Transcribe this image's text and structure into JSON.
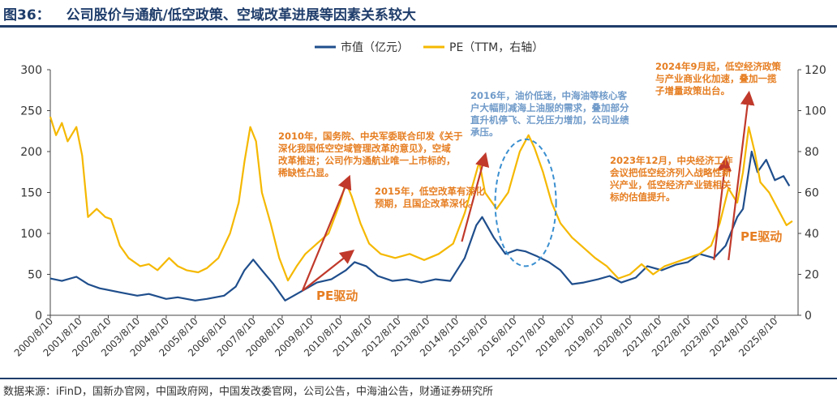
{
  "header": {
    "figure_no": "图36：",
    "title": "公司股价与通航/低空政策、空域改革进展等因素关系较大"
  },
  "footer": {
    "source": "数据来源：iFinD，国新办官网，中国政府网，中国发改委官网，公司公告，中海油公告，财通证券研究所"
  },
  "colors": {
    "market_cap": "#1f4e8c",
    "pe": "#f5b800",
    "annotation_orange": "#e67e22",
    "annotation_blue": "#6f9ac9",
    "arrow_red": "#c0392b",
    "axis": "#444444"
  },
  "chart_data": {
    "type": "line",
    "legend": [
      "市值（亿元）",
      "PE（TTM，右轴）"
    ],
    "legend_position": "top-center",
    "categories": [
      "2000/8/10",
      "2001/8/10",
      "2002/8/10",
      "2003/8/10",
      "2004/8/10",
      "2005/8/10",
      "2006/8/10",
      "2007/8/10",
      "2008/8/10",
      "2009/8/10",
      "2010/8/10",
      "2011/8/10",
      "2012/8/10",
      "2013/8/10",
      "2014/8/10",
      "2015/8/10",
      "2016/8/10",
      "2017/8/10",
      "2018/8/10",
      "2019/8/10",
      "2020/8/10",
      "2021/8/10",
      "2022/8/10",
      "2023/8/10",
      "2024/8/10",
      "2025/8/10"
    ],
    "x_range": [
      2000.6,
      2026.4
    ],
    "left_axis": {
      "label": "市值（亿元）",
      "ylim": [
        0,
        300
      ],
      "ticks": [
        0,
        50,
        100,
        150,
        200,
        250,
        300
      ]
    },
    "right_axis": {
      "label": "PE（TTM，右轴）",
      "ylim": [
        0,
        120
      ],
      "ticks": [
        0,
        20,
        40,
        60,
        80,
        100,
        120
      ]
    },
    "series": [
      {
        "name": "市值（亿元）",
        "axis": "left",
        "points": [
          [
            2000.6,
            45
          ],
          [
            2001.0,
            42
          ],
          [
            2001.5,
            47
          ],
          [
            2001.9,
            38
          ],
          [
            2002.3,
            33
          ],
          [
            2003.0,
            28
          ],
          [
            2003.6,
            24
          ],
          [
            2004.0,
            26
          ],
          [
            2004.6,
            20
          ],
          [
            2005.0,
            22
          ],
          [
            2005.6,
            18
          ],
          [
            2006.0,
            20
          ],
          [
            2006.6,
            24
          ],
          [
            2007.0,
            35
          ],
          [
            2007.3,
            55
          ],
          [
            2007.6,
            68
          ],
          [
            2007.9,
            55
          ],
          [
            2008.3,
            38
          ],
          [
            2008.7,
            18
          ],
          [
            2009.0,
            24
          ],
          [
            2009.4,
            32
          ],
          [
            2009.8,
            40
          ],
          [
            2010.3,
            44
          ],
          [
            2010.8,
            55
          ],
          [
            2011.1,
            65
          ],
          [
            2011.5,
            60
          ],
          [
            2011.9,
            48
          ],
          [
            2012.4,
            42
          ],
          [
            2012.9,
            44
          ],
          [
            2013.4,
            40
          ],
          [
            2013.9,
            44
          ],
          [
            2014.4,
            42
          ],
          [
            2014.9,
            70
          ],
          [
            2015.3,
            110
          ],
          [
            2015.5,
            120
          ],
          [
            2015.9,
            95
          ],
          [
            2016.3,
            75
          ],
          [
            2016.7,
            80
          ],
          [
            2017.0,
            78
          ],
          [
            2017.4,
            72
          ],
          [
            2017.8,
            65
          ],
          [
            2018.2,
            55
          ],
          [
            2018.6,
            38
          ],
          [
            2019.0,
            40
          ],
          [
            2019.5,
            44
          ],
          [
            2019.9,
            48
          ],
          [
            2020.3,
            40
          ],
          [
            2020.8,
            46
          ],
          [
            2021.2,
            60
          ],
          [
            2021.7,
            55
          ],
          [
            2022.2,
            62
          ],
          [
            2022.6,
            65
          ],
          [
            2023.0,
            75
          ],
          [
            2023.5,
            70
          ],
          [
            2023.9,
            85
          ],
          [
            2024.3,
            120
          ],
          [
            2024.5,
            130
          ],
          [
            2024.8,
            200
          ],
          [
            2025.0,
            175
          ],
          [
            2025.3,
            190
          ],
          [
            2025.6,
            165
          ],
          [
            2025.9,
            170
          ],
          [
            2026.1,
            158
          ]
        ]
      },
      {
        "name": "PE（TTM，右轴）",
        "axis": "right",
        "points": [
          [
            2000.6,
            97
          ],
          [
            2000.8,
            88
          ],
          [
            2001.0,
            94
          ],
          [
            2001.2,
            85
          ],
          [
            2001.5,
            92
          ],
          [
            2001.7,
            78
          ],
          [
            2001.9,
            48
          ],
          [
            2002.2,
            52
          ],
          [
            2002.5,
            48
          ],
          [
            2002.7,
            47
          ],
          [
            2003.0,
            34
          ],
          [
            2003.3,
            28
          ],
          [
            2003.7,
            24
          ],
          [
            2004.0,
            25
          ],
          [
            2004.3,
            22
          ],
          [
            2004.7,
            28
          ],
          [
            2005.0,
            24
          ],
          [
            2005.3,
            22
          ],
          [
            2005.7,
            21
          ],
          [
            2006.0,
            23
          ],
          [
            2006.4,
            28
          ],
          [
            2006.8,
            40
          ],
          [
            2007.1,
            55
          ],
          [
            2007.3,
            75
          ],
          [
            2007.5,
            92
          ],
          [
            2007.7,
            85
          ],
          [
            2007.9,
            60
          ],
          [
            2008.2,
            45
          ],
          [
            2008.5,
            28
          ],
          [
            2008.8,
            17
          ],
          [
            2009.1,
            24
          ],
          [
            2009.4,
            30
          ],
          [
            2009.8,
            35
          ],
          [
            2010.2,
            40
          ],
          [
            2010.6,
            55
          ],
          [
            2010.8,
            65
          ],
          [
            2011.0,
            58
          ],
          [
            2011.3,
            45
          ],
          [
            2011.6,
            35
          ],
          [
            2012.0,
            30
          ],
          [
            2012.5,
            28
          ],
          [
            2013.0,
            30
          ],
          [
            2013.5,
            27
          ],
          [
            2014.0,
            30
          ],
          [
            2014.5,
            35
          ],
          [
            2014.9,
            50
          ],
          [
            2015.2,
            65
          ],
          [
            2015.4,
            75
          ],
          [
            2015.6,
            60
          ],
          [
            2016.0,
            52
          ],
          [
            2016.4,
            60
          ],
          [
            2016.8,
            80
          ],
          [
            2017.1,
            88
          ],
          [
            2017.3,
            82
          ],
          [
            2017.6,
            70
          ],
          [
            2017.9,
            55
          ],
          [
            2018.2,
            45
          ],
          [
            2018.6,
            38
          ],
          [
            2019.0,
            33
          ],
          [
            2019.4,
            28
          ],
          [
            2019.8,
            24
          ],
          [
            2020.2,
            18
          ],
          [
            2020.6,
            20
          ],
          [
            2021.0,
            25
          ],
          [
            2021.4,
            20
          ],
          [
            2021.8,
            24
          ],
          [
            2022.2,
            26
          ],
          [
            2022.6,
            28
          ],
          [
            2023.0,
            30
          ],
          [
            2023.4,
            34
          ],
          [
            2023.7,
            45
          ],
          [
            2024.0,
            62
          ],
          [
            2024.3,
            55
          ],
          [
            2024.5,
            70
          ],
          [
            2024.7,
            92
          ],
          [
            2024.9,
            80
          ],
          [
            2025.1,
            65
          ],
          [
            2025.4,
            60
          ],
          [
            2025.7,
            52
          ],
          [
            2026.0,
            44
          ],
          [
            2026.2,
            46
          ]
        ]
      }
    ],
    "annotations": [
      {
        "id": "a2010",
        "color": "orange",
        "text": [
          "2010年，国务院、中央军委联合印发《关于",
          "深化我国低空空域管理改革的意见》，空域",
          "改革推进；公司作为通航业唯一上市标的，",
          "稀缺性凸显。"
        ]
      },
      {
        "id": "a2015",
        "color": "orange",
        "text": [
          "2015年，低空改革有深化",
          "预期，且国企改革深化。"
        ]
      },
      {
        "id": "a2016",
        "color": "blue",
        "text": [
          "2016年，油价低迷，中海油等核心客",
          "户大幅削减海上油服的需求，叠加部分",
          "直升机停飞、汇兑压力增加，公司业绩",
          "承压。"
        ]
      },
      {
        "id": "a2023",
        "color": "orange",
        "text": [
          "2023年12月，中央经济工作",
          "会议把低空经济列入战略性新",
          "兴产业，低空经济产业链相关",
          "标的估值提升。"
        ]
      },
      {
        "id": "a2024",
        "color": "orange",
        "text": [
          "2024年9月起，低空经济政策",
          "与产业商业化加速，叠加一揽",
          "子增量政策出台。"
        ]
      }
    ],
    "callouts": [
      "PE驱动",
      "PE驱动"
    ],
    "arrows": [
      {
        "from": [
          2009.3,
          12
        ],
        "to": [
          2010.9,
          67
        ],
        "axis": "right"
      },
      {
        "from": [
          2009.3,
          12
        ],
        "to": [
          2011.0,
          31
        ],
        "axis": "right"
      },
      {
        "from": [
          2014.8,
          36
        ],
        "to": [
          2015.6,
          78
        ],
        "axis": "right"
      },
      {
        "from": [
          2023.5,
          27
        ],
        "to": [
          2023.9,
          76
        ],
        "axis": "right"
      },
      {
        "from": [
          2024.0,
          27
        ],
        "to": [
          2024.7,
          108
        ],
        "axis": "right"
      }
    ],
    "ellipse": {
      "center": [
        2017.0,
        55
      ],
      "rx_years": 1.05,
      "ry_right": 31
    }
  }
}
